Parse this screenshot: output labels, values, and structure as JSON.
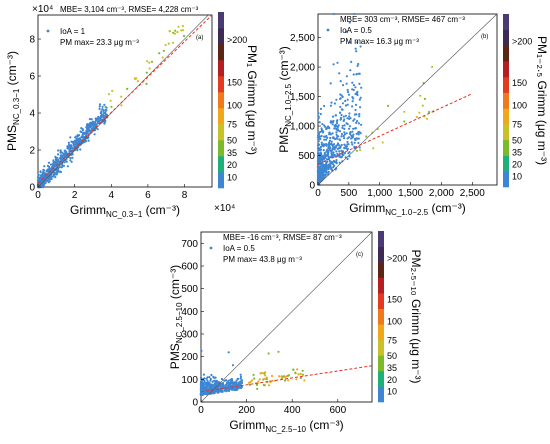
{
  "chart_data": [
    {
      "type": "scatter",
      "panel": "(a)",
      "xlabel": "Grimm",
      "xlabel_sub": "NC_0.3−1",
      "xlabel_unit": "(cm⁻³)",
      "ylabel": "PMS",
      "ylabel_sub": "NC_0.3−1",
      "ylabel_unit": "(cm⁻³)",
      "x_multiplier": "×10⁴",
      "y_multiplier": "×10⁴",
      "xlim": [
        0,
        9.5
      ],
      "ylim": [
        0,
        9.3
      ],
      "x_ticks": [
        0,
        2,
        4,
        6,
        8
      ],
      "y_ticks": [
        0,
        2,
        4,
        6,
        8
      ],
      "x_tick_labels": [
        "0",
        "2",
        "4",
        "6",
        "8"
      ],
      "y_tick_labels": [
        "0",
        "2",
        "4",
        "6",
        "8"
      ],
      "stats": [
        "MBE= 3,104 cm⁻³, RMSE= 4,228 cm⁻³"
      ],
      "legend": [
        "IoA = 1",
        "PM max= 23.3 μg m⁻³"
      ],
      "fit_line": [
        [
          0,
          0.2
        ],
        [
          9.5,
          10.2
        ]
      ],
      "colorbar_label": "PM₁ Grimm (μg m⁻³)",
      "colorbar_ticks": [
        "10",
        "20",
        "35",
        "50",
        "75",
        "100",
        "150",
        ">200"
      ]
    },
    {
      "type": "scatter",
      "panel": "(b)",
      "xlabel": "Grimm",
      "xlabel_sub": "NC_1.0−2.5",
      "xlabel_unit": "(cm⁻³)",
      "ylabel": "PMS",
      "ylabel_sub": "NC_1.0−2.5",
      "ylabel_unit": "(cm⁻³)",
      "xlim": [
        0,
        2900
      ],
      "ylim": [
        0,
        2900
      ],
      "x_ticks": [
        0,
        500,
        1000,
        1500,
        2000,
        2500
      ],
      "y_ticks": [
        0,
        500,
        1000,
        1500,
        2000,
        2500
      ],
      "x_tick_labels": [
        "0",
        "500",
        "1,000",
        "1,500",
        "2,000",
        "2,500"
      ],
      "y_tick_labels": [
        "0",
        "500",
        "1,000",
        "1,500",
        "2,000",
        "2,500"
      ],
      "stats": [
        "MBE= 303 cm⁻³, RMSE= 467 cm⁻³"
      ],
      "legend": [
        "IoA = 0.5",
        "PM max= 16.3 μg m⁻³"
      ],
      "fit_line": [
        [
          0,
          350
        ],
        [
          2500,
          1550
        ]
      ],
      "colorbar_label": "PM₁₋₂.₅ Grimm (μg m⁻³)",
      "colorbar_ticks": [
        "10",
        "20",
        "35",
        "50",
        "75",
        "100",
        "150",
        ">200"
      ]
    },
    {
      "type": "scatter",
      "panel": "(c)",
      "xlabel": "Grimm",
      "xlabel_sub": "NC_2.5−10",
      "xlabel_unit": "(cm⁻³)",
      "ylabel": "PMS",
      "ylabel_sub": "NC_2.5−10",
      "ylabel_unit": "(cm⁻³)",
      "xlim": [
        0,
        750
      ],
      "ylim": [
        0,
        750
      ],
      "x_ticks": [
        0,
        200,
        400,
        600
      ],
      "y_ticks": [
        0,
        100,
        200,
        300,
        400,
        500,
        600,
        700
      ],
      "x_tick_labels": [
        "0",
        "200",
        "400",
        "600"
      ],
      "y_tick_labels": [
        "0",
        "100",
        "200",
        "300",
        "400",
        "500",
        "600",
        "700"
      ],
      "stats": [
        "MBE= -16 cm⁻³, RMSE= 87 cm⁻³"
      ],
      "legend": [
        "IoA = 0.5",
        "PM max= 43.8 μg m⁻³"
      ],
      "fit_line": [
        [
          0,
          45
        ],
        [
          750,
          160
        ]
      ],
      "colorbar_label": "PM₂.₅₋₁₀ Grimm (μg m⁻³)",
      "colorbar_ticks": [
        "10",
        "20",
        "35",
        "50",
        "75",
        "100",
        "150",
        ">200"
      ]
    }
  ],
  "colors": {
    "points": "#3d86d4",
    "fit_line": "#e83020",
    "one_to_one": "#555555",
    "colorbar": [
      "#3d86d4",
      "#1fb07a",
      "#7cba2c",
      "#c9c12a",
      "#f0a81a",
      "#ee7a1c",
      "#e43a20",
      "#b51f24",
      "#5b2616",
      "#3d2b53",
      "#4a3b73"
    ]
  }
}
